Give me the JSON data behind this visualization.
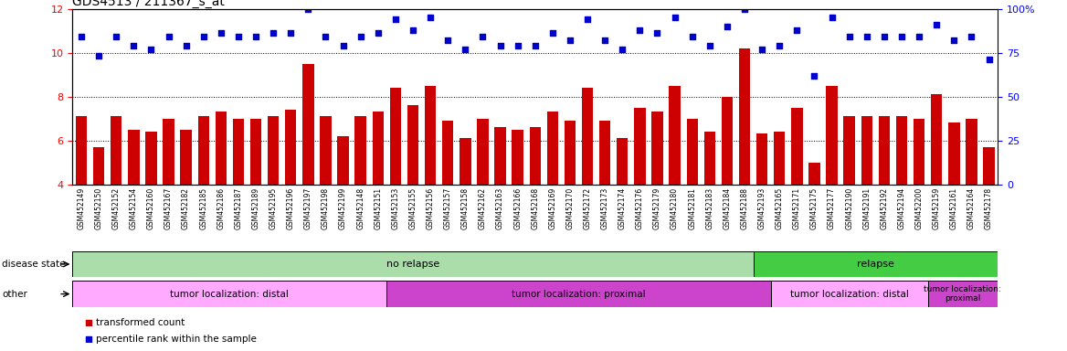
{
  "title": "GDS4513 / 211367_s_at",
  "samples": [
    "GSM452149",
    "GSM452150",
    "GSM452152",
    "GSM452154",
    "GSM452160",
    "GSM452167",
    "GSM452182",
    "GSM452185",
    "GSM452186",
    "GSM452187",
    "GSM452189",
    "GSM452195",
    "GSM452196",
    "GSM452197",
    "GSM452198",
    "GSM452199",
    "GSM452148",
    "GSM452151",
    "GSM452153",
    "GSM452155",
    "GSM452156",
    "GSM452157",
    "GSM452158",
    "GSM452162",
    "GSM452163",
    "GSM452166",
    "GSM452168",
    "GSM452169",
    "GSM452170",
    "GSM452172",
    "GSM452173",
    "GSM452174",
    "GSM452176",
    "GSM452179",
    "GSM452180",
    "GSM452181",
    "GSM452183",
    "GSM452184",
    "GSM452188",
    "GSM452193",
    "GSM452165",
    "GSM452171",
    "GSM452175",
    "GSM452177",
    "GSM452190",
    "GSM452191",
    "GSM452192",
    "GSM452194",
    "GSM452200",
    "GSM452159",
    "GSM452161",
    "GSM452164",
    "GSM452178"
  ],
  "bar_values": [
    7.1,
    5.7,
    7.1,
    6.5,
    6.4,
    7.0,
    6.5,
    7.1,
    7.3,
    7.0,
    7.0,
    7.1,
    7.4,
    9.5,
    7.1,
    6.2,
    7.1,
    7.3,
    8.4,
    7.6,
    8.5,
    6.9,
    6.1,
    7.0,
    6.6,
    6.5,
    6.6,
    7.3,
    6.9,
    8.4,
    6.9,
    6.1,
    7.5,
    7.3,
    8.5,
    7.0,
    6.4,
    8.0,
    10.2,
    6.3,
    6.4,
    7.5,
    5.0,
    8.5,
    7.1,
    7.1,
    7.1,
    7.1,
    7.0,
    8.1,
    6.8,
    7.0,
    5.7
  ],
  "dot_values": [
    84,
    73,
    84,
    79,
    77,
    84,
    79,
    84,
    86,
    84,
    84,
    86,
    86,
    100,
    84,
    79,
    84,
    86,
    94,
    88,
    95,
    82,
    77,
    84,
    79,
    79,
    79,
    86,
    82,
    94,
    82,
    77,
    88,
    86,
    95,
    84,
    79,
    90,
    100,
    77,
    79,
    88,
    62,
    95,
    84,
    84,
    84,
    84,
    84,
    91,
    82,
    84,
    71
  ],
  "ylim_left": [
    4,
    12
  ],
  "ylim_right": [
    0,
    100
  ],
  "yticks_left": [
    4,
    6,
    8,
    10,
    12
  ],
  "yticks_right": [
    0,
    25,
    50,
    75,
    100
  ],
  "bar_color": "#CC0000",
  "dot_color": "#0000CC",
  "disease_state_groups": [
    {
      "label": "no relapse",
      "start": 0,
      "end": 39,
      "color": "#AADDAA"
    },
    {
      "label": "relapse",
      "start": 39,
      "end": 53,
      "color": "#44CC44"
    }
  ],
  "other_groups": [
    {
      "label": "tumor localization: distal",
      "start": 0,
      "end": 18,
      "color": "#FFAAFF"
    },
    {
      "label": "tumor localization: proximal",
      "start": 18,
      "end": 40,
      "color": "#CC44CC"
    },
    {
      "label": "tumor localization: distal",
      "start": 40,
      "end": 49,
      "color": "#FFAAFF"
    },
    {
      "label": "tumor localization:\nproximal",
      "start": 49,
      "end": 53,
      "color": "#CC44CC"
    }
  ],
  "legend_items": [
    {
      "label": "transformed count",
      "color": "#CC0000"
    },
    {
      "label": "percentile rank within the sample",
      "color": "#0000CC"
    }
  ]
}
